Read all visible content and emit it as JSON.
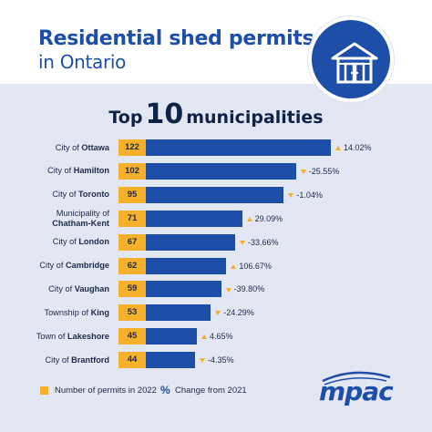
{
  "title_line1": "Residential shed permits",
  "title_line2": "in Ontario",
  "badge_icon": "shed-icon",
  "subtitle_prefix": "Top",
  "subtitle_number": "10",
  "subtitle_suffix": "municipalities",
  "legend": {
    "permits_label": "Number of permits in 2022",
    "change_symbol": "%",
    "change_label": "Change from 2021"
  },
  "logo_text": "mpac",
  "colors": {
    "brand_blue": "#1d4ea8",
    "accent_orange": "#f6b02a",
    "panel_bg": "#e3e6f3"
  },
  "chart_data": {
    "type": "bar",
    "orientation": "horizontal",
    "categories": [
      "City of Ottawa",
      "City of Hamilton",
      "City of Toronto",
      "Municipality of Chatham-Kent",
      "City of London",
      "City of Cambridge",
      "City of Vaughan",
      "Township of King",
      "Town of Lakeshore",
      "City of Brantford"
    ],
    "label_parts": [
      [
        "City of",
        "Ottawa"
      ],
      [
        "City of",
        "Hamilton"
      ],
      [
        "City of",
        "Toronto"
      ],
      [
        "Municipality of",
        "Chatham-Kent"
      ],
      [
        "City of",
        "London"
      ],
      [
        "City of",
        "Cambridge"
      ],
      [
        "City of",
        "Vaughan"
      ],
      [
        "Township of",
        "King"
      ],
      [
        "Town of",
        "Lakeshore"
      ],
      [
        "City of",
        "Brantford"
      ]
    ],
    "values": [
      122,
      102,
      95,
      71,
      67,
      62,
      59,
      53,
      45,
      44
    ],
    "changes": [
      "14.02%",
      "-25.55%",
      "-1.04%",
      "29.09%",
      "-33.66%",
      "106.67%",
      "-39.80%",
      "-24.29%",
      "4.65%",
      "-4.35%"
    ],
    "change_direction": [
      "up",
      "down",
      "down",
      "up",
      "down",
      "up",
      "down",
      "down",
      "up",
      "down"
    ]
  }
}
